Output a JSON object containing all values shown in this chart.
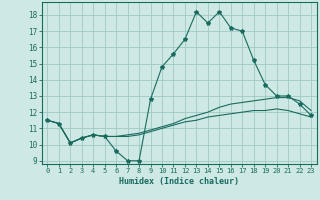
{
  "title": "",
  "xlabel": "Humidex (Indice chaleur)",
  "ylabel": "",
  "background_color": "#cde8e5",
  "grid_color": "#a0c8c4",
  "line_color": "#1a6b5e",
  "xlim": [
    -0.5,
    23.5
  ],
  "ylim": [
    8.8,
    18.8
  ],
  "xticks": [
    0,
    1,
    2,
    3,
    4,
    5,
    6,
    7,
    8,
    9,
    10,
    11,
    12,
    13,
    14,
    15,
    16,
    17,
    18,
    19,
    20,
    21,
    22,
    23
  ],
  "yticks": [
    9,
    10,
    11,
    12,
    13,
    14,
    15,
    16,
    17,
    18
  ],
  "series1_x": [
    0,
    1,
    2,
    3,
    4,
    5,
    6,
    7,
    8,
    9,
    10,
    11,
    12,
    13,
    14,
    15,
    16,
    17,
    18,
    19,
    20,
    21,
    22,
    23
  ],
  "series1_y": [
    11.5,
    11.3,
    10.1,
    10.4,
    10.6,
    10.5,
    9.6,
    9.0,
    9.0,
    12.8,
    14.8,
    15.6,
    16.5,
    18.2,
    17.5,
    18.2,
    17.2,
    17.0,
    15.2,
    13.7,
    13.0,
    13.0,
    12.5,
    11.8
  ],
  "series2_x": [
    0,
    1,
    2,
    3,
    4,
    5,
    6,
    7,
    8,
    9,
    10,
    11,
    12,
    13,
    14,
    15,
    16,
    17,
    18,
    19,
    20,
    21,
    22,
    23
  ],
  "series2_y": [
    11.5,
    11.3,
    10.1,
    10.4,
    10.6,
    10.5,
    10.5,
    10.6,
    10.7,
    10.9,
    11.1,
    11.3,
    11.6,
    11.8,
    12.0,
    12.3,
    12.5,
    12.6,
    12.7,
    12.8,
    12.9,
    12.9,
    12.7,
    12.1
  ],
  "series3_x": [
    0,
    1,
    2,
    3,
    4,
    5,
    6,
    7,
    8,
    9,
    10,
    11,
    12,
    13,
    14,
    15,
    16,
    17,
    18,
    19,
    20,
    21,
    22,
    23
  ],
  "series3_y": [
    11.5,
    11.3,
    10.1,
    10.4,
    10.6,
    10.5,
    10.5,
    10.5,
    10.6,
    10.8,
    11.0,
    11.2,
    11.4,
    11.5,
    11.7,
    11.8,
    11.9,
    12.0,
    12.1,
    12.1,
    12.2,
    12.1,
    11.9,
    11.7
  ]
}
